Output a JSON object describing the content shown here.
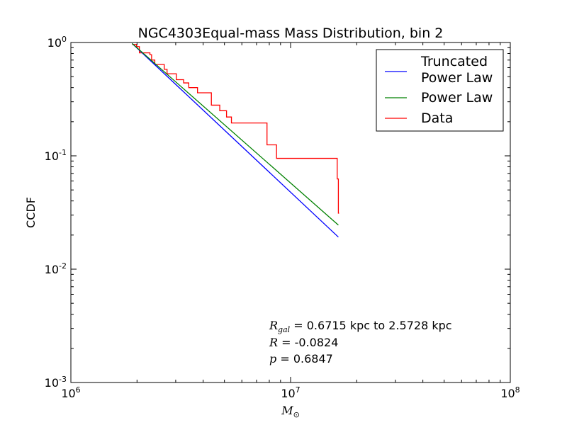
{
  "chart_data": {
    "type": "line",
    "title": "NGC4303Equal-mass Mass Distribution, bin 2",
    "xlabel": {
      "symbol": "M",
      "subscript": "⊙"
    },
    "ylabel": "CCDF",
    "xscale": "log",
    "yscale": "log",
    "xlim": [
      1000000,
      100000000
    ],
    "ylim": [
      0.001,
      1
    ],
    "xticks": [
      {
        "value": 1000000,
        "base": "10",
        "exp": "6"
      },
      {
        "value": 10000000,
        "base": "10",
        "exp": "7"
      },
      {
        "value": 100000000,
        "base": "10",
        "exp": "8"
      }
    ],
    "yticks": [
      {
        "value": 1,
        "base": "10",
        "exp": "0"
      },
      {
        "value": 0.1,
        "base": "10",
        "exp": "-1"
      },
      {
        "value": 0.01,
        "base": "10",
        "exp": "-2"
      },
      {
        "value": 0.001,
        "base": "10",
        "exp": "-3"
      }
    ],
    "grid": false,
    "legend": "top-right",
    "series": [
      {
        "name": "Truncated\nPower Law",
        "color": "#0000ff",
        "kind": "line",
        "x": [
          1900000,
          16500000
        ],
        "y": [
          0.98,
          0.0192
        ]
      },
      {
        "name": "Power Law",
        "color": "#008000",
        "kind": "line",
        "x": [
          1900000,
          16500000
        ],
        "y": [
          0.98,
          0.0245
        ]
      },
      {
        "name": "Data",
        "color": "#ff0000",
        "kind": "step",
        "x": [
          1900000,
          1990000,
          2050000,
          2290000,
          2330000,
          2410000,
          2660000,
          2740000,
          3020000,
          3260000,
          3440000,
          3770000,
          4360000,
          4760000,
          5110000,
          5380000,
          7810000,
          8630000,
          16300000,
          16500000
        ],
        "y": [
          0.96,
          0.92,
          0.81,
          0.78,
          0.7,
          0.64,
          0.58,
          0.53,
          0.47,
          0.44,
          0.4,
          0.36,
          0.28,
          0.25,
          0.22,
          0.195,
          0.125,
          0.095,
          0.0625,
          0.0312
        ]
      }
    ],
    "annotations": [
      {
        "symbol": "R",
        "subscript": "gal",
        "text": " = 0.6715 kpc to 2.5728 kpc"
      },
      {
        "symbol": "R",
        "subscript": "",
        "text": " = -0.0824"
      },
      {
        "symbol": "p",
        "subscript": "",
        "text": " = 0.6847"
      }
    ]
  }
}
